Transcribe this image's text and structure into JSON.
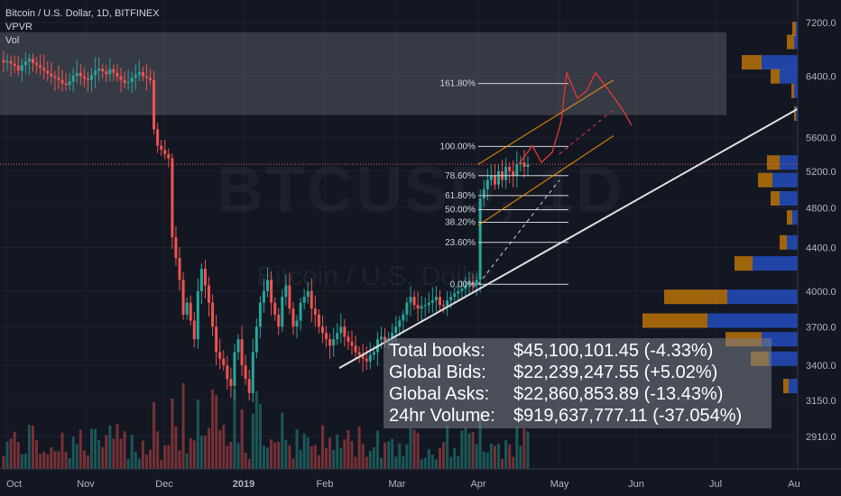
{
  "header": {
    "symbol": "Bitcoin / U.S. Dollar, 1D, BITFINEX",
    "indicator1": "VPVR",
    "indicator2": "Vol"
  },
  "watermark": {
    "main": "BTCUSD, 1D",
    "sub": "Bitcoin / U.S. Dollar"
  },
  "chart_data": {
    "type": "candlestick",
    "x_ticks": [
      "Oct",
      "Nov",
      "Dec",
      "2019",
      "Feb",
      "Mar",
      "Apr",
      "May",
      "Jun",
      "Jul",
      "Au"
    ],
    "y_ticks": [
      7200,
      6400,
      5600,
      5200,
      4800,
      4400,
      4000,
      3700,
      3400,
      3150,
      2910
    ],
    "y_tick_labels": [
      "7200.0",
      "6400.0",
      "5600.0",
      "5200.0",
      "4800.0",
      "4400.0",
      "4000.0",
      "3700.0",
      "3400.0",
      "3150.0",
      "2910.0"
    ],
    "y_scale": "log",
    "current_price": "5280.2",
    "price_series": [
      6600,
      6620,
      6580,
      6550,
      6480,
      6560,
      6610,
      6650,
      6590,
      6560,
      6520,
      6480,
      6440,
      6400,
      6380,
      6350,
      6300,
      6280,
      6330,
      6410,
      6450,
      6400,
      6370,
      6350,
      6420,
      6480,
      6510,
      6470,
      6430,
      6500,
      6450,
      6400,
      6350,
      6310,
      6320,
      6380,
      6420,
      6460,
      6400,
      6380,
      6350,
      5700,
      5500,
      5450,
      5400,
      5350,
      4500,
      4300,
      4100,
      3800,
      3900,
      3750,
      3600,
      4000,
      4200,
      4050,
      3900,
      3700,
      3500,
      3450,
      3400,
      3300,
      3250,
      3500,
      3600,
      3400,
      3300,
      3200,
      3500,
      3700,
      3900,
      4000,
      4100,
      3900,
      3800,
      3700,
      3950,
      4050,
      3850,
      3700,
      3750,
      3900,
      3950,
      4000,
      3850,
      3800,
      3700,
      3650,
      3600,
      3550,
      3600,
      3650,
      3700,
      3620,
      3580,
      3550,
      3500,
      3480,
      3450,
      3430,
      3480,
      3500,
      3600,
      3620,
      3580,
      3600,
      3650,
      3700,
      3750,
      3800,
      3900,
      3950,
      3880,
      3850,
      3870,
      3880,
      3900,
      3920,
      3950,
      3880,
      3870,
      3920,
      3950,
      3980,
      4000,
      4020,
      4050,
      4080,
      4050,
      4100,
      4900,
      5000,
      5100,
      5150,
      5050,
      5200,
      5100,
      5250,
      5200,
      5150,
      5280,
      5300,
      5250,
      5280
    ],
    "fib_levels": [
      {
        "label": "0.00%",
        "price": 4060
      },
      {
        "label": "23.60%",
        "price": 4450
      },
      {
        "label": "38.20%",
        "price": 4650
      },
      {
        "label": "50.00%",
        "price": 4780
      },
      {
        "label": "61.80%",
        "price": 4930
      },
      {
        "label": "78.60%",
        "price": 5150
      },
      {
        "label": "100.00%",
        "price": 5490
      },
      {
        "label": "161.80%",
        "price": 6300
      }
    ],
    "price_box": {
      "top": 7050,
      "bottom": 5880
    }
  },
  "stats": {
    "rows": [
      {
        "key": "Total books:",
        "value": "$45,100,101.45 (-4.33%)"
      },
      {
        "key": "Global Bids:",
        "value": "$22,239,247.55 (+5.02%)"
      },
      {
        "key": "Global Asks:",
        "value": "$22,860,853.89 (-13.43%)"
      },
      {
        "key": "24hr Volume:",
        "value": "$919,637,777.11 (-37.054%)"
      }
    ]
  },
  "colors": {
    "up": "#26a69a",
    "down": "#ef5350",
    "grid": "#1e2230",
    "axis_text": "#b2b5be",
    "current": "#ef5350",
    "trend": "#e0e0e0",
    "channel": "#ff9800",
    "projection": "#e53935",
    "vp_up": "#2962ff",
    "vp_down": "#ff9800"
  }
}
